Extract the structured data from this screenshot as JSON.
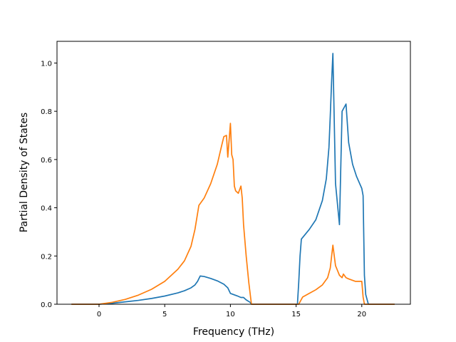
{
  "chart_data": {
    "type": "line",
    "title": "",
    "xlabel": "Frequency (THz)",
    "ylabel": "Partial Density of States",
    "xlim": [
      -3.2,
      23.7
    ],
    "ylim": [
      0.0,
      1.09
    ],
    "xticks": [
      0,
      5,
      10,
      15,
      20
    ],
    "xtick_labels": [
      "0",
      "5",
      "10",
      "15",
      "20"
    ],
    "yticks": [
      0.0,
      0.2,
      0.4,
      0.6,
      0.8,
      1.0
    ],
    "ytick_labels": [
      "0.0",
      "0.2",
      "0.4",
      "0.6",
      "0.8",
      "1.0"
    ],
    "grid": false,
    "legend": "none",
    "series": [
      {
        "color": "#1f77b4",
        "x": [
          -2.1,
          0.0,
          0.5,
          1.0,
          2.0,
          3.0,
          4.0,
          5.0,
          6.0,
          6.5,
          7.0,
          7.3,
          7.5,
          7.7,
          8.0,
          8.5,
          9.0,
          9.5,
          9.8,
          10.0,
          10.5,
          10.8,
          11.0,
          11.2,
          11.5,
          11.6,
          15.1,
          15.2,
          15.3,
          15.4,
          16.0,
          16.5,
          17.0,
          17.3,
          17.5,
          17.6,
          17.7,
          17.8,
          18.0,
          18.3,
          18.5,
          18.6,
          18.8,
          19.0,
          19.3,
          19.6,
          20.0,
          20.1,
          20.2,
          20.3,
          20.5,
          22.5
        ],
        "y": [
          0.0,
          0.0,
          0.002,
          0.004,
          0.01,
          0.016,
          0.024,
          0.034,
          0.047,
          0.056,
          0.068,
          0.08,
          0.095,
          0.117,
          0.115,
          0.107,
          0.097,
          0.083,
          0.068,
          0.045,
          0.035,
          0.028,
          0.028,
          0.018,
          0.008,
          0.0,
          0.0,
          0.09,
          0.2,
          0.27,
          0.31,
          0.35,
          0.43,
          0.52,
          0.65,
          0.78,
          0.92,
          1.04,
          0.5,
          0.33,
          0.8,
          0.81,
          0.83,
          0.67,
          0.58,
          0.53,
          0.48,
          0.45,
          0.12,
          0.04,
          0.0,
          0.0
        ]
      },
      {
        "color": "#ff7f0e",
        "x": [
          -2.1,
          0.0,
          1.0,
          2.0,
          3.0,
          4.0,
          5.0,
          6.0,
          6.5,
          7.0,
          7.3,
          7.6,
          8.0,
          8.5,
          9.0,
          9.3,
          9.5,
          9.7,
          9.8,
          9.9,
          10.0,
          10.1,
          10.2,
          10.3,
          10.4,
          10.6,
          10.8,
          10.9,
          11.0,
          11.2,
          11.4,
          11.6,
          11.8,
          15.2,
          15.5,
          16.0,
          16.5,
          17.0,
          17.4,
          17.6,
          17.8,
          18.0,
          18.3,
          18.5,
          18.6,
          18.8,
          19.0,
          19.5,
          20.0,
          20.1,
          20.2,
          22.5
        ],
        "y": [
          0.0,
          0.0,
          0.008,
          0.02,
          0.038,
          0.062,
          0.095,
          0.145,
          0.18,
          0.24,
          0.31,
          0.41,
          0.44,
          0.5,
          0.58,
          0.65,
          0.695,
          0.7,
          0.61,
          0.68,
          0.75,
          0.62,
          0.6,
          0.49,
          0.47,
          0.46,
          0.49,
          0.44,
          0.33,
          0.2,
          0.09,
          0.0,
          0.0,
          0.0,
          0.03,
          0.045,
          0.06,
          0.08,
          0.11,
          0.15,
          0.245,
          0.16,
          0.12,
          0.11,
          0.125,
          0.11,
          0.105,
          0.095,
          0.095,
          0.03,
          0.0,
          0.0
        ]
      }
    ]
  }
}
